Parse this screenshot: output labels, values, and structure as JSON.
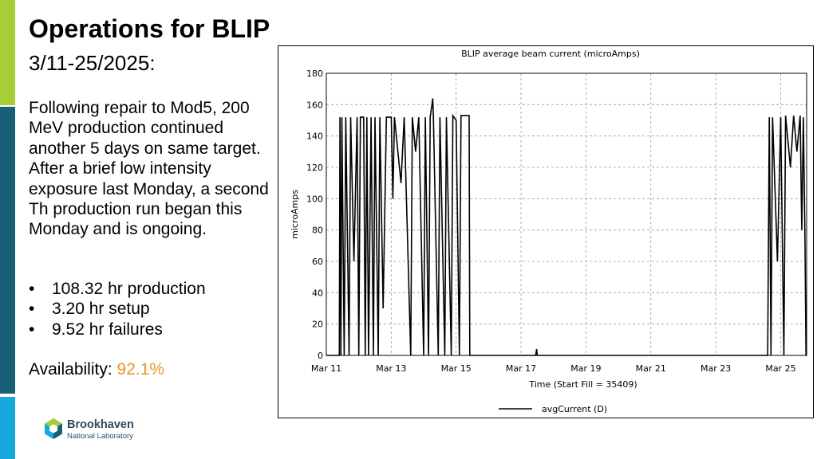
{
  "slide": {
    "title": "Operations for BLIP",
    "subtitle": "3/11-25/2025:",
    "body": "Following repair to Mod5, 200 MeV production continued another 5 days on same target. After a brief low intensity exposure last Monday, a second Th production run began this Monday and is ongoing.",
    "bullets": [
      "108.32 hr production",
      "3.20 hr setup",
      "9.52 hr failures"
    ],
    "availability_label": "Availability:",
    "availability_value": "92.1%"
  },
  "logo": {
    "name": "Brookhaven",
    "subtitle": "National Laboratory"
  },
  "colors": {
    "accent_green": "#a6ce39",
    "accent_navy": "#1b5f77",
    "accent_cyan": "#17a8dd",
    "availability": "#e8962c"
  },
  "chart_data": {
    "type": "line",
    "title": "BLIP average beam current (microAmps)",
    "xlabel": "Time (Start Fill = 35409)",
    "ylabel": "microAmps",
    "x_unit": "days since Mar 11",
    "xlim": [
      0,
      14.8
    ],
    "ylim": [
      0,
      180
    ],
    "x_ticks": [
      {
        "x": 0,
        "label": "Mar 11"
      },
      {
        "x": 2,
        "label": "Mar 13"
      },
      {
        "x": 4,
        "label": "Mar 15"
      },
      {
        "x": 6,
        "label": "Mar 17"
      },
      {
        "x": 8,
        "label": "Mar 19"
      },
      {
        "x": 10,
        "label": "Mar 21"
      },
      {
        "x": 12,
        "label": "Mar 23"
      },
      {
        "x": 14,
        "label": "Mar 25"
      }
    ],
    "y_ticks": [
      0,
      20,
      40,
      60,
      80,
      100,
      120,
      140,
      160,
      180
    ],
    "grid": true,
    "legend": "bottom-center",
    "series": [
      {
        "name": "avgCurrent (D)",
        "points": [
          [
            0,
            0
          ],
          [
            0.4,
            0
          ],
          [
            0.42,
            152
          ],
          [
            0.45,
            0
          ],
          [
            0.48,
            152
          ],
          [
            0.55,
            0
          ],
          [
            0.6,
            152
          ],
          [
            0.7,
            0
          ],
          [
            0.75,
            152
          ],
          [
            0.85,
            60
          ],
          [
            0.95,
            152
          ],
          [
            1.0,
            0
          ],
          [
            1.05,
            152
          ],
          [
            1.15,
            152
          ],
          [
            1.2,
            0
          ],
          [
            1.25,
            152
          ],
          [
            1.3,
            0
          ],
          [
            1.38,
            152
          ],
          [
            1.45,
            0
          ],
          [
            1.5,
            152
          ],
          [
            1.6,
            0
          ],
          [
            1.65,
            152
          ],
          [
            1.75,
            30
          ],
          [
            1.85,
            152
          ],
          [
            2.0,
            152
          ],
          [
            2.05,
            100
          ],
          [
            2.1,
            152
          ],
          [
            2.3,
            110
          ],
          [
            2.4,
            152
          ],
          [
            2.6,
            0
          ],
          [
            2.65,
            152
          ],
          [
            2.75,
            130
          ],
          [
            2.85,
            152
          ],
          [
            3.0,
            0
          ],
          [
            3.05,
            152
          ],
          [
            3.15,
            0
          ],
          [
            3.2,
            152
          ],
          [
            3.28,
            164
          ],
          [
            3.3,
            152
          ],
          [
            3.45,
            0
          ],
          [
            3.5,
            152
          ],
          [
            3.65,
            0
          ],
          [
            3.7,
            152
          ],
          [
            3.85,
            0
          ],
          [
            3.9,
            153
          ],
          [
            4.0,
            150
          ],
          [
            4.1,
            0
          ],
          [
            4.15,
            153
          ],
          [
            4.4,
            153
          ],
          [
            4.42,
            0
          ],
          [
            6.45,
            0
          ],
          [
            6.48,
            4
          ],
          [
            6.5,
            0
          ],
          [
            13.6,
            0
          ],
          [
            13.65,
            152
          ],
          [
            13.7,
            0
          ],
          [
            13.75,
            152
          ],
          [
            13.9,
            60
          ],
          [
            14.0,
            152
          ],
          [
            14.1,
            0
          ],
          [
            14.15,
            153
          ],
          [
            14.3,
            120
          ],
          [
            14.4,
            153
          ],
          [
            14.5,
            130
          ],
          [
            14.6,
            153
          ],
          [
            14.65,
            80
          ],
          [
            14.7,
            152
          ],
          [
            14.75,
            70
          ],
          [
            14.78,
            0
          ],
          [
            14.8,
            0
          ]
        ]
      }
    ]
  }
}
